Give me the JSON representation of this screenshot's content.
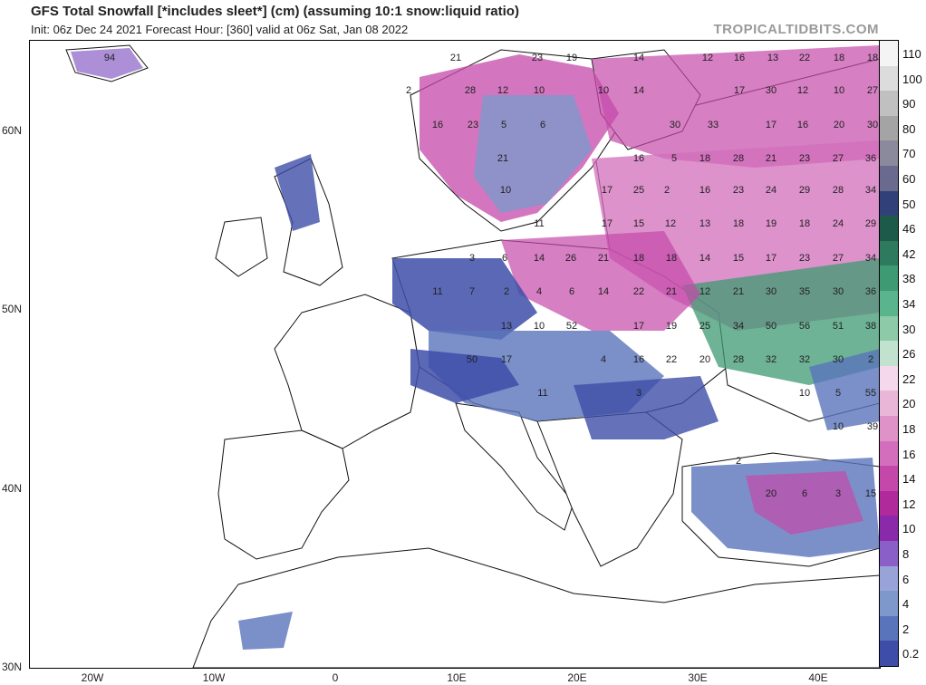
{
  "header": {
    "title": "GFS Total Snowfall [*includes sleet*] (cm) (assuming 10:1 snow:liquid ratio)",
    "subtitle": "Init: 06z Dec 24 2021   Forecast Hour: [360]   valid at 06z Sat, Jan 08 2022",
    "watermark": "TROPICALTIDBITS.COM"
  },
  "axes": {
    "lat_labels": [
      "60N",
      "50N",
      "40N",
      "30N"
    ],
    "lon_labels": [
      "20W",
      "10W",
      "0",
      "10E",
      "20E",
      "30E",
      "40E"
    ]
  },
  "legend": {
    "labels": [
      "110",
      "100",
      "90",
      "80",
      "70",
      "60",
      "50",
      "46",
      "42",
      "38",
      "34",
      "30",
      "26",
      "22",
      "20",
      "18",
      "16",
      "14",
      "12",
      "10",
      "8",
      "6",
      "4",
      "2",
      "0.2"
    ],
    "colors": [
      "#f4f4f4",
      "#dcdcdc",
      "#c0c0c0",
      "#a4a4a4",
      "#8a8a9c",
      "#6a6a8e",
      "#32407a",
      "#1e5a4a",
      "#2e7a5e",
      "#3e9a72",
      "#5ab48c",
      "#8ccaa8",
      "#c2e2d0",
      "#f6d8ec",
      "#eab6d8",
      "#de92c8",
      "#d26ebb",
      "#c448aa",
      "#b02a9c",
      "#8a2aaa",
      "#8a60c8",
      "#98a4d8",
      "#7e98cc",
      "#5a74bc",
      "#3e4ea8"
    ]
  },
  "map_values": [
    {
      "text": "94"
    },
    {
      "text": "21"
    },
    {
      "text": "23"
    },
    {
      "text": "19"
    },
    {
      "text": "14"
    },
    {
      "text": "12"
    },
    {
      "text": "16"
    },
    {
      "text": "13"
    },
    {
      "text": "22"
    },
    {
      "text": "18"
    },
    {
      "text": "18"
    },
    {
      "text": "2"
    },
    {
      "text": "28"
    },
    {
      "text": "12"
    },
    {
      "text": "10"
    },
    {
      "text": "10"
    },
    {
      "text": "14"
    },
    {
      "text": "17"
    },
    {
      "text": "30"
    },
    {
      "text": "12"
    },
    {
      "text": "10"
    },
    {
      "text": "27"
    },
    {
      "text": "16"
    },
    {
      "text": "23"
    },
    {
      "text": "5"
    },
    {
      "text": "6"
    },
    {
      "text": "30"
    },
    {
      "text": "33"
    },
    {
      "text": "17"
    },
    {
      "text": "16"
    },
    {
      "text": "20"
    },
    {
      "text": "30"
    },
    {
      "text": "21"
    },
    {
      "text": "16"
    },
    {
      "text": "5"
    },
    {
      "text": "18"
    },
    {
      "text": "28"
    },
    {
      "text": "21"
    },
    {
      "text": "23"
    },
    {
      "text": "27"
    },
    {
      "text": "36"
    },
    {
      "text": "10"
    },
    {
      "text": "17"
    },
    {
      "text": "25"
    },
    {
      "text": "2"
    },
    {
      "text": "16"
    },
    {
      "text": "23"
    },
    {
      "text": "24"
    },
    {
      "text": "29"
    },
    {
      "text": "28"
    },
    {
      "text": "34"
    },
    {
      "text": "11"
    },
    {
      "text": "17"
    },
    {
      "text": "15"
    },
    {
      "text": "12"
    },
    {
      "text": "13"
    },
    {
      "text": "18"
    },
    {
      "text": "19"
    },
    {
      "text": "18"
    },
    {
      "text": "24"
    },
    {
      "text": "29"
    },
    {
      "text": "3"
    },
    {
      "text": "6"
    },
    {
      "text": "14"
    },
    {
      "text": "26"
    },
    {
      "text": "21"
    },
    {
      "text": "18"
    },
    {
      "text": "18"
    },
    {
      "text": "14"
    },
    {
      "text": "15"
    },
    {
      "text": "17"
    },
    {
      "text": "23"
    },
    {
      "text": "27"
    },
    {
      "text": "34"
    },
    {
      "text": "11"
    },
    {
      "text": "7"
    },
    {
      "text": "2"
    },
    {
      "text": "4"
    },
    {
      "text": "6"
    },
    {
      "text": "14"
    },
    {
      "text": "22"
    },
    {
      "text": "21"
    },
    {
      "text": "12"
    },
    {
      "text": "21"
    },
    {
      "text": "30"
    },
    {
      "text": "35"
    },
    {
      "text": "30"
    },
    {
      "text": "36"
    },
    {
      "text": "13"
    },
    {
      "text": "10"
    },
    {
      "text": "52"
    },
    {
      "text": "17"
    },
    {
      "text": "19"
    },
    {
      "text": "25"
    },
    {
      "text": "34"
    },
    {
      "text": "50"
    },
    {
      "text": "56"
    },
    {
      "text": "51"
    },
    {
      "text": "38"
    },
    {
      "text": "50"
    },
    {
      "text": "17"
    },
    {
      "text": "4"
    },
    {
      "text": "16"
    },
    {
      "text": "22"
    },
    {
      "text": "20"
    },
    {
      "text": "28"
    },
    {
      "text": "32"
    },
    {
      "text": "32"
    },
    {
      "text": "30"
    },
    {
      "text": "2"
    },
    {
      "text": "11"
    },
    {
      "text": "3"
    },
    {
      "text": "10"
    },
    {
      "text": "5"
    },
    {
      "text": "55"
    },
    {
      "text": "10"
    },
    {
      "text": "39"
    },
    {
      "text": "2"
    },
    {
      "text": "20"
    },
    {
      "text": "6"
    },
    {
      "text": "3"
    },
    {
      "text": "15"
    }
  ]
}
